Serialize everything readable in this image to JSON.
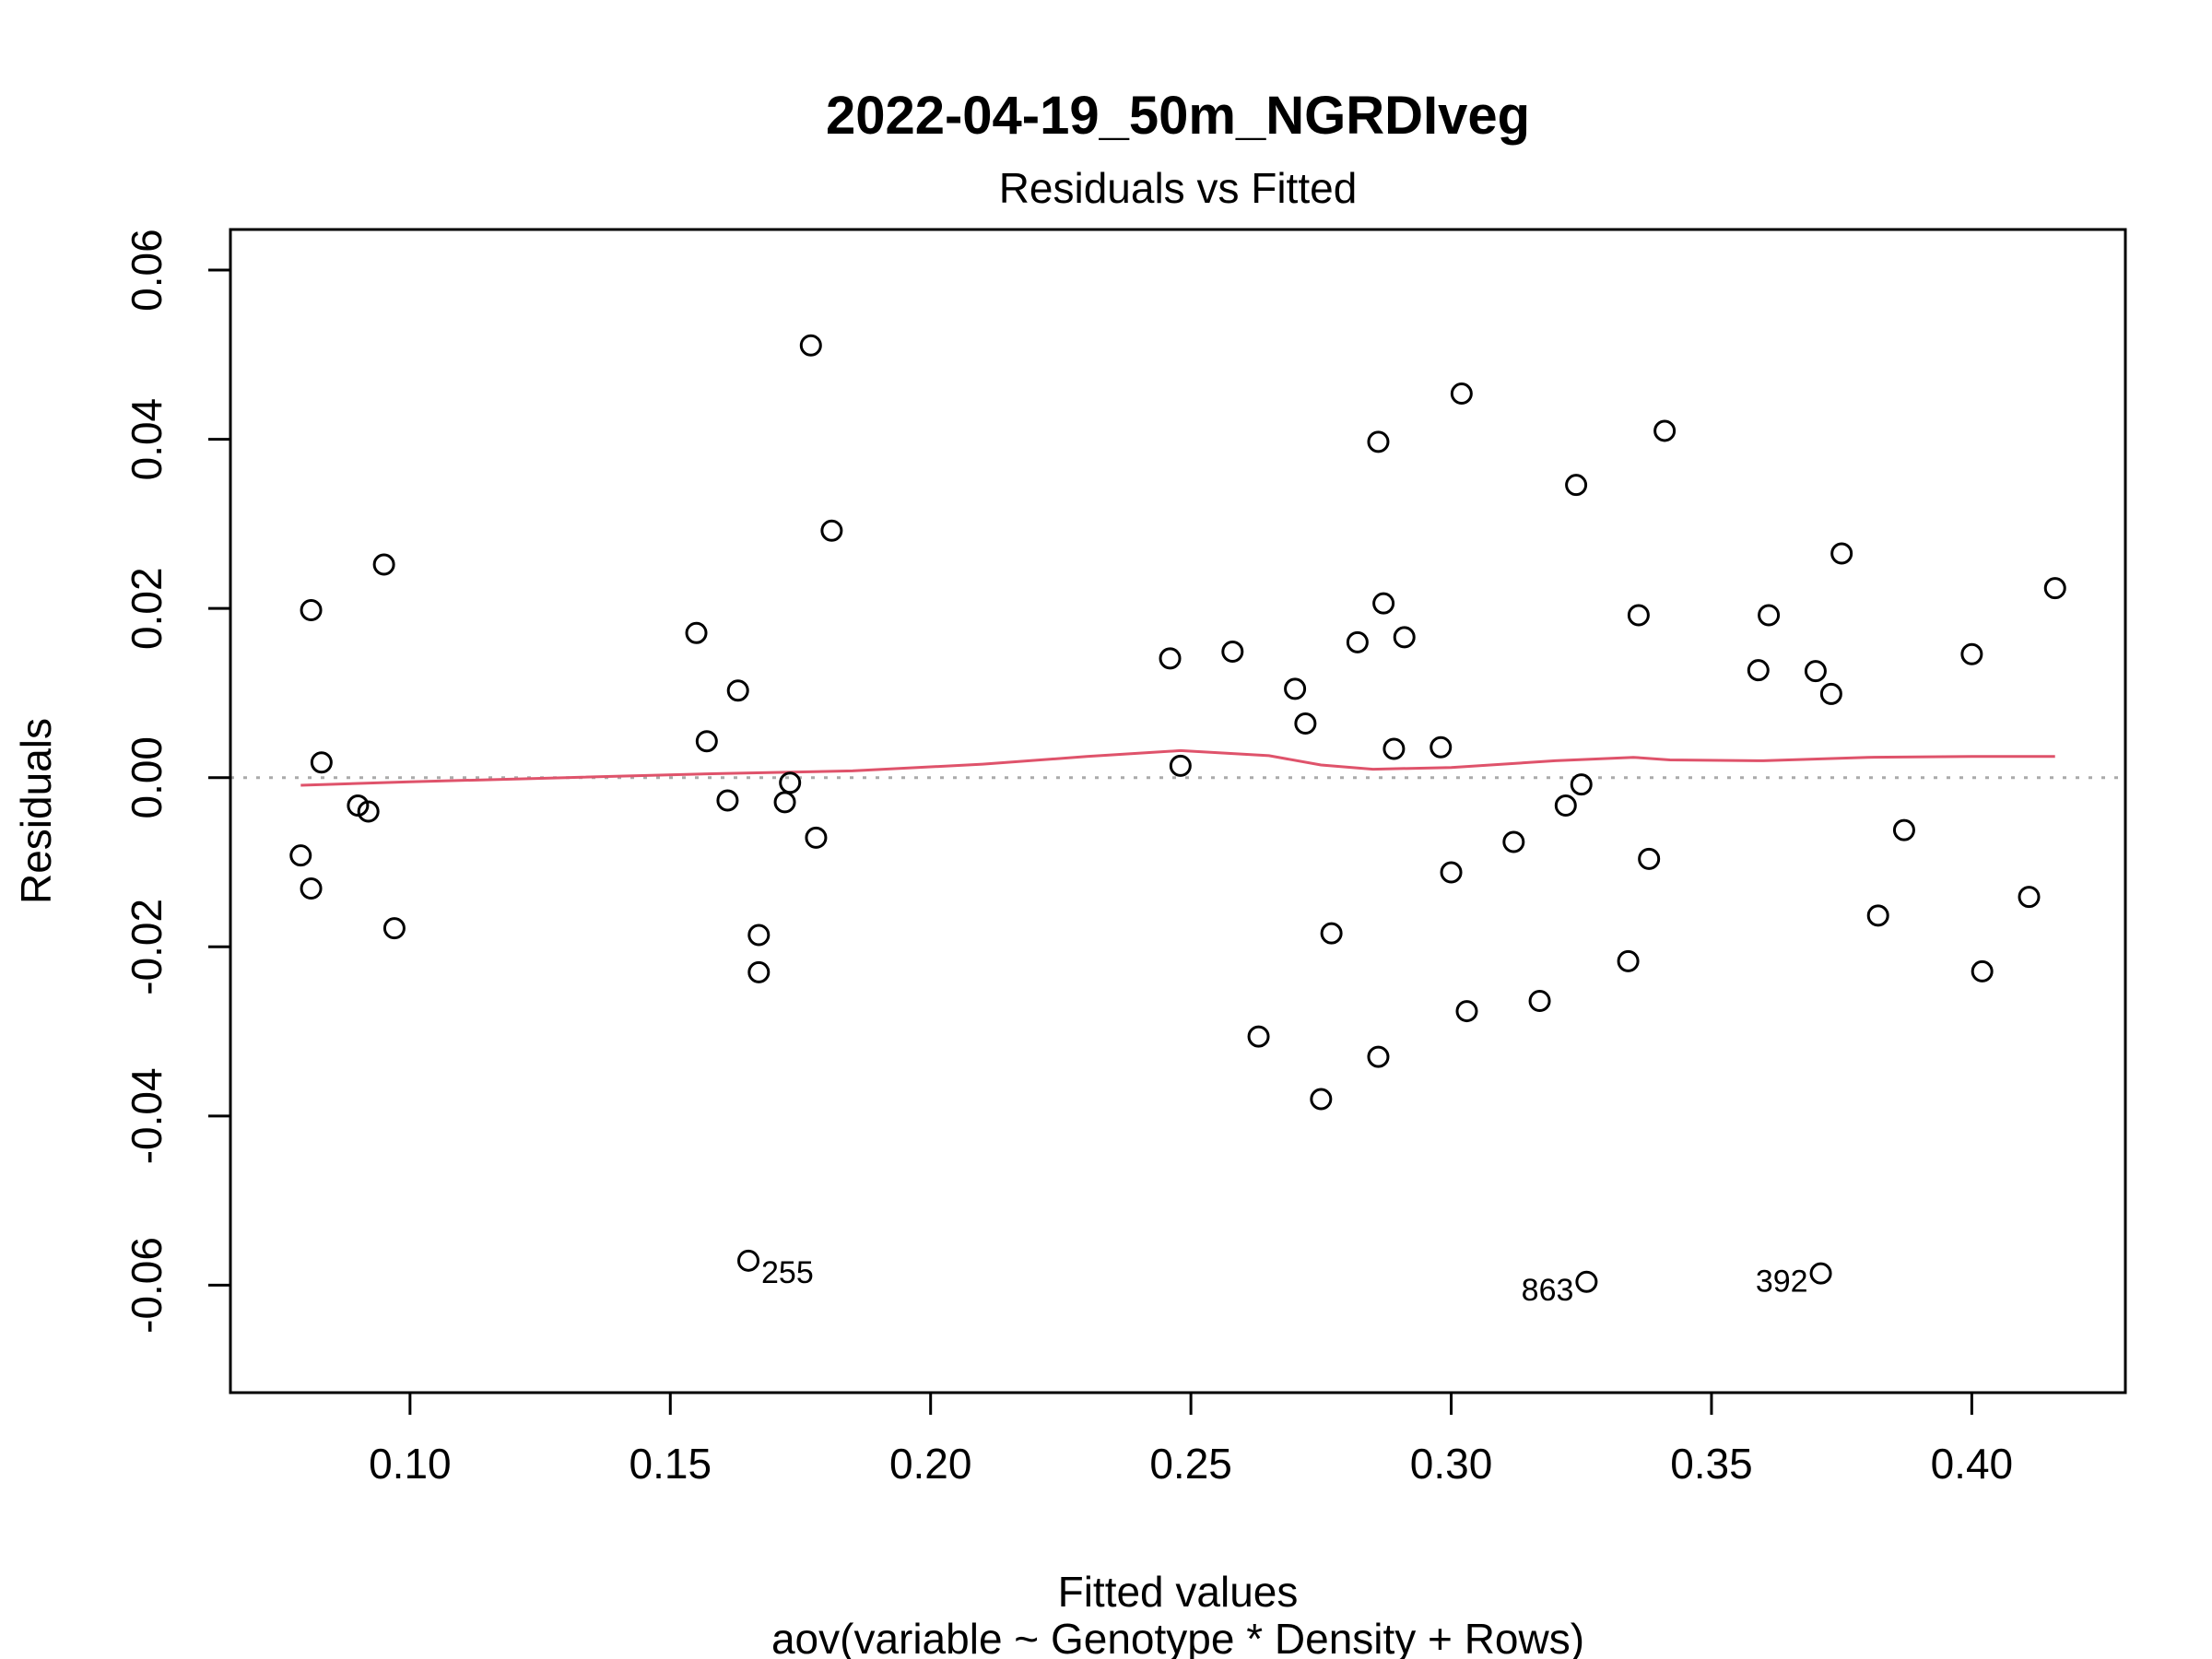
{
  "chart_data": {
    "type": "scatter",
    "title": "2022-04-19_50m_NGRDIveg",
    "subtitle": "Residuals vs Fitted",
    "xlabel": "Fitted values",
    "caption": "aov(variable ~ Genotype * Density + Rows)",
    "ylabel": "Residuals",
    "xlim": [
      0.0655,
      0.4295
    ],
    "ylim": [
      -0.0727,
      0.0648
    ],
    "x_ticks": [
      0.1,
      0.15,
      0.2,
      0.25,
      0.3,
      0.35,
      0.4
    ],
    "x_tick_labels": [
      "0.10",
      "0.15",
      "0.20",
      "0.25",
      "0.30",
      "0.35",
      "0.40"
    ],
    "y_ticks": [
      -0.06,
      -0.04,
      -0.02,
      0.0,
      0.02,
      0.04,
      0.06
    ],
    "y_tick_labels": [
      "-0.06",
      "-0.04",
      "-0.02",
      "0.00",
      "0.02",
      "0.04",
      "0.06"
    ],
    "grid": false,
    "reference_line": {
      "y": 0,
      "style": "dotted",
      "color": "#aaaaaa"
    },
    "colors": {
      "points": "#000000",
      "smooth": "#df536b",
      "axes": "#000000"
    },
    "points": [
      {
        "x": 0.079,
        "y": -0.0092
      },
      {
        "x": 0.081,
        "y": 0.0198
      },
      {
        "x": 0.081,
        "y": -0.0131
      },
      {
        "x": 0.083,
        "y": 0.0018
      },
      {
        "x": 0.09,
        "y": -0.0033
      },
      {
        "x": 0.092,
        "y": -0.004
      },
      {
        "x": 0.095,
        "y": 0.0252
      },
      {
        "x": 0.097,
        "y": -0.0178
      },
      {
        "x": 0.155,
        "y": 0.0171
      },
      {
        "x": 0.157,
        "y": 0.0043
      },
      {
        "x": 0.161,
        "y": -0.0027
      },
      {
        "x": 0.163,
        "y": 0.0103
      },
      {
        "x": 0.165,
        "y": -0.0571,
        "label": "255"
      },
      {
        "x": 0.167,
        "y": -0.0186
      },
      {
        "x": 0.167,
        "y": -0.023
      },
      {
        "x": 0.172,
        "y": -0.0029
      },
      {
        "x": 0.173,
        "y": -0.0006
      },
      {
        "x": 0.177,
        "y": 0.0511
      },
      {
        "x": 0.178,
        "y": -0.0071
      },
      {
        "x": 0.181,
        "y": 0.0292
      },
      {
        "x": 0.246,
        "y": 0.0141
      },
      {
        "x": 0.248,
        "y": 0.0014
      },
      {
        "x": 0.258,
        "y": 0.0149
      },
      {
        "x": 0.263,
        "y": -0.0306
      },
      {
        "x": 0.27,
        "y": 0.0105
      },
      {
        "x": 0.272,
        "y": 0.0064
      },
      {
        "x": 0.275,
        "y": -0.038
      },
      {
        "x": 0.277,
        "y": -0.0184
      },
      {
        "x": 0.282,
        "y": 0.016
      },
      {
        "x": 0.286,
        "y": 0.0397
      },
      {
        "x": 0.286,
        "y": -0.033
      },
      {
        "x": 0.287,
        "y": 0.0206
      },
      {
        "x": 0.289,
        "y": 0.0034
      },
      {
        "x": 0.291,
        "y": 0.0166
      },
      {
        "x": 0.298,
        "y": 0.0036
      },
      {
        "x": 0.3,
        "y": -0.0112
      },
      {
        "x": 0.302,
        "y": 0.0454
      },
      {
        "x": 0.303,
        "y": -0.0276
      },
      {
        "x": 0.312,
        "y": -0.0076
      },
      {
        "x": 0.317,
        "y": -0.0264
      },
      {
        "x": 0.322,
        "y": -0.0033
      },
      {
        "x": 0.324,
        "y": 0.0346
      },
      {
        "x": 0.325,
        "y": -0.0008
      },
      {
        "x": 0.326,
        "y": -0.0596,
        "label": "863"
      },
      {
        "x": 0.334,
        "y": -0.0217
      },
      {
        "x": 0.336,
        "y": 0.0192
      },
      {
        "x": 0.338,
        "y": -0.0096
      },
      {
        "x": 0.341,
        "y": 0.041
      },
      {
        "x": 0.359,
        "y": 0.0127
      },
      {
        "x": 0.361,
        "y": 0.0192
      },
      {
        "x": 0.37,
        "y": 0.0126
      },
      {
        "x": 0.371,
        "y": -0.0586,
        "label": "392"
      },
      {
        "x": 0.373,
        "y": 0.0099
      },
      {
        "x": 0.375,
        "y": 0.0265
      },
      {
        "x": 0.382,
        "y": -0.0163
      },
      {
        "x": 0.387,
        "y": -0.0062
      },
      {
        "x": 0.4,
        "y": 0.0146
      },
      {
        "x": 0.402,
        "y": -0.0229
      },
      {
        "x": 0.411,
        "y": -0.0141
      },
      {
        "x": 0.416,
        "y": 0.0224
      }
    ],
    "smooth": [
      {
        "x": 0.079,
        "y": -0.0009
      },
      {
        "x": 0.1,
        "y": -0.0005
      },
      {
        "x": 0.13,
        "y": 0.0
      },
      {
        "x": 0.16,
        "y": 0.0005
      },
      {
        "x": 0.185,
        "y": 0.0008
      },
      {
        "x": 0.21,
        "y": 0.0016
      },
      {
        "x": 0.23,
        "y": 0.0025
      },
      {
        "x": 0.248,
        "y": 0.0032
      },
      {
        "x": 0.265,
        "y": 0.0026
      },
      {
        "x": 0.275,
        "y": 0.0015
      },
      {
        "x": 0.285,
        "y": 0.001
      },
      {
        "x": 0.3,
        "y": 0.0012
      },
      {
        "x": 0.32,
        "y": 0.002
      },
      {
        "x": 0.335,
        "y": 0.0024
      },
      {
        "x": 0.342,
        "y": 0.0021
      },
      {
        "x": 0.36,
        "y": 0.002
      },
      {
        "x": 0.38,
        "y": 0.0024
      },
      {
        "x": 0.4,
        "y": 0.0025
      },
      {
        "x": 0.416,
        "y": 0.0025
      }
    ]
  }
}
